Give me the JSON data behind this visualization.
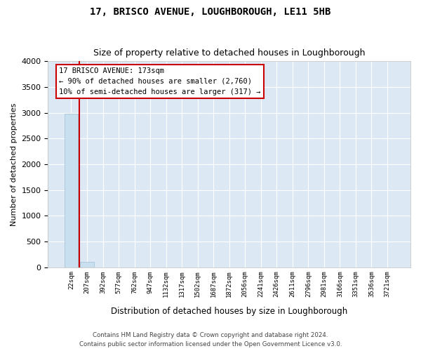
{
  "title": "17, BRISCO AVENUE, LOUGHBOROUGH, LE11 5HB",
  "subtitle": "Size of property relative to detached houses in Loughborough",
  "xlabel": "Distribution of detached houses by size in Loughborough",
  "ylabel": "Number of detached properties",
  "bar_categories": [
    "22sqm",
    "207sqm",
    "392sqm",
    "577sqm",
    "762sqm",
    "947sqm",
    "1132sqm",
    "1317sqm",
    "1502sqm",
    "1687sqm",
    "1872sqm",
    "2056sqm",
    "2241sqm",
    "2426sqm",
    "2611sqm",
    "2796sqm",
    "2981sqm",
    "3166sqm",
    "3351sqm",
    "3536sqm",
    "3721sqm"
  ],
  "bar_values": [
    2980,
    110,
    0,
    0,
    0,
    0,
    0,
    0,
    0,
    0,
    0,
    0,
    0,
    0,
    0,
    0,
    0,
    0,
    0,
    0,
    0
  ],
  "bar_color": "#c8dff0",
  "bar_edge_color": "#a0c0d8",
  "ylim": [
    0,
    4000
  ],
  "yticks": [
    0,
    500,
    1000,
    1500,
    2000,
    2500,
    3000,
    3500,
    4000
  ],
  "property_line_x": 0.5,
  "property_line_color": "#cc0000",
  "annotation_title": "17 BRISCO AVENUE: 173sqm",
  "annotation_line1": "← 90% of detached houses are smaller (2,760)",
  "annotation_line2": "10% of semi-detached houses are larger (317) →",
  "annotation_box_color": "#cc0000",
  "footer_line1": "Contains HM Land Registry data © Crown copyright and database right 2024.",
  "footer_line2": "Contains public sector information licensed under the Open Government Licence v3.0.",
  "plot_bg_color": "#dce9f5",
  "grid_color": "#ffffff",
  "title_fontsize": 10,
  "subtitle_fontsize": 9
}
